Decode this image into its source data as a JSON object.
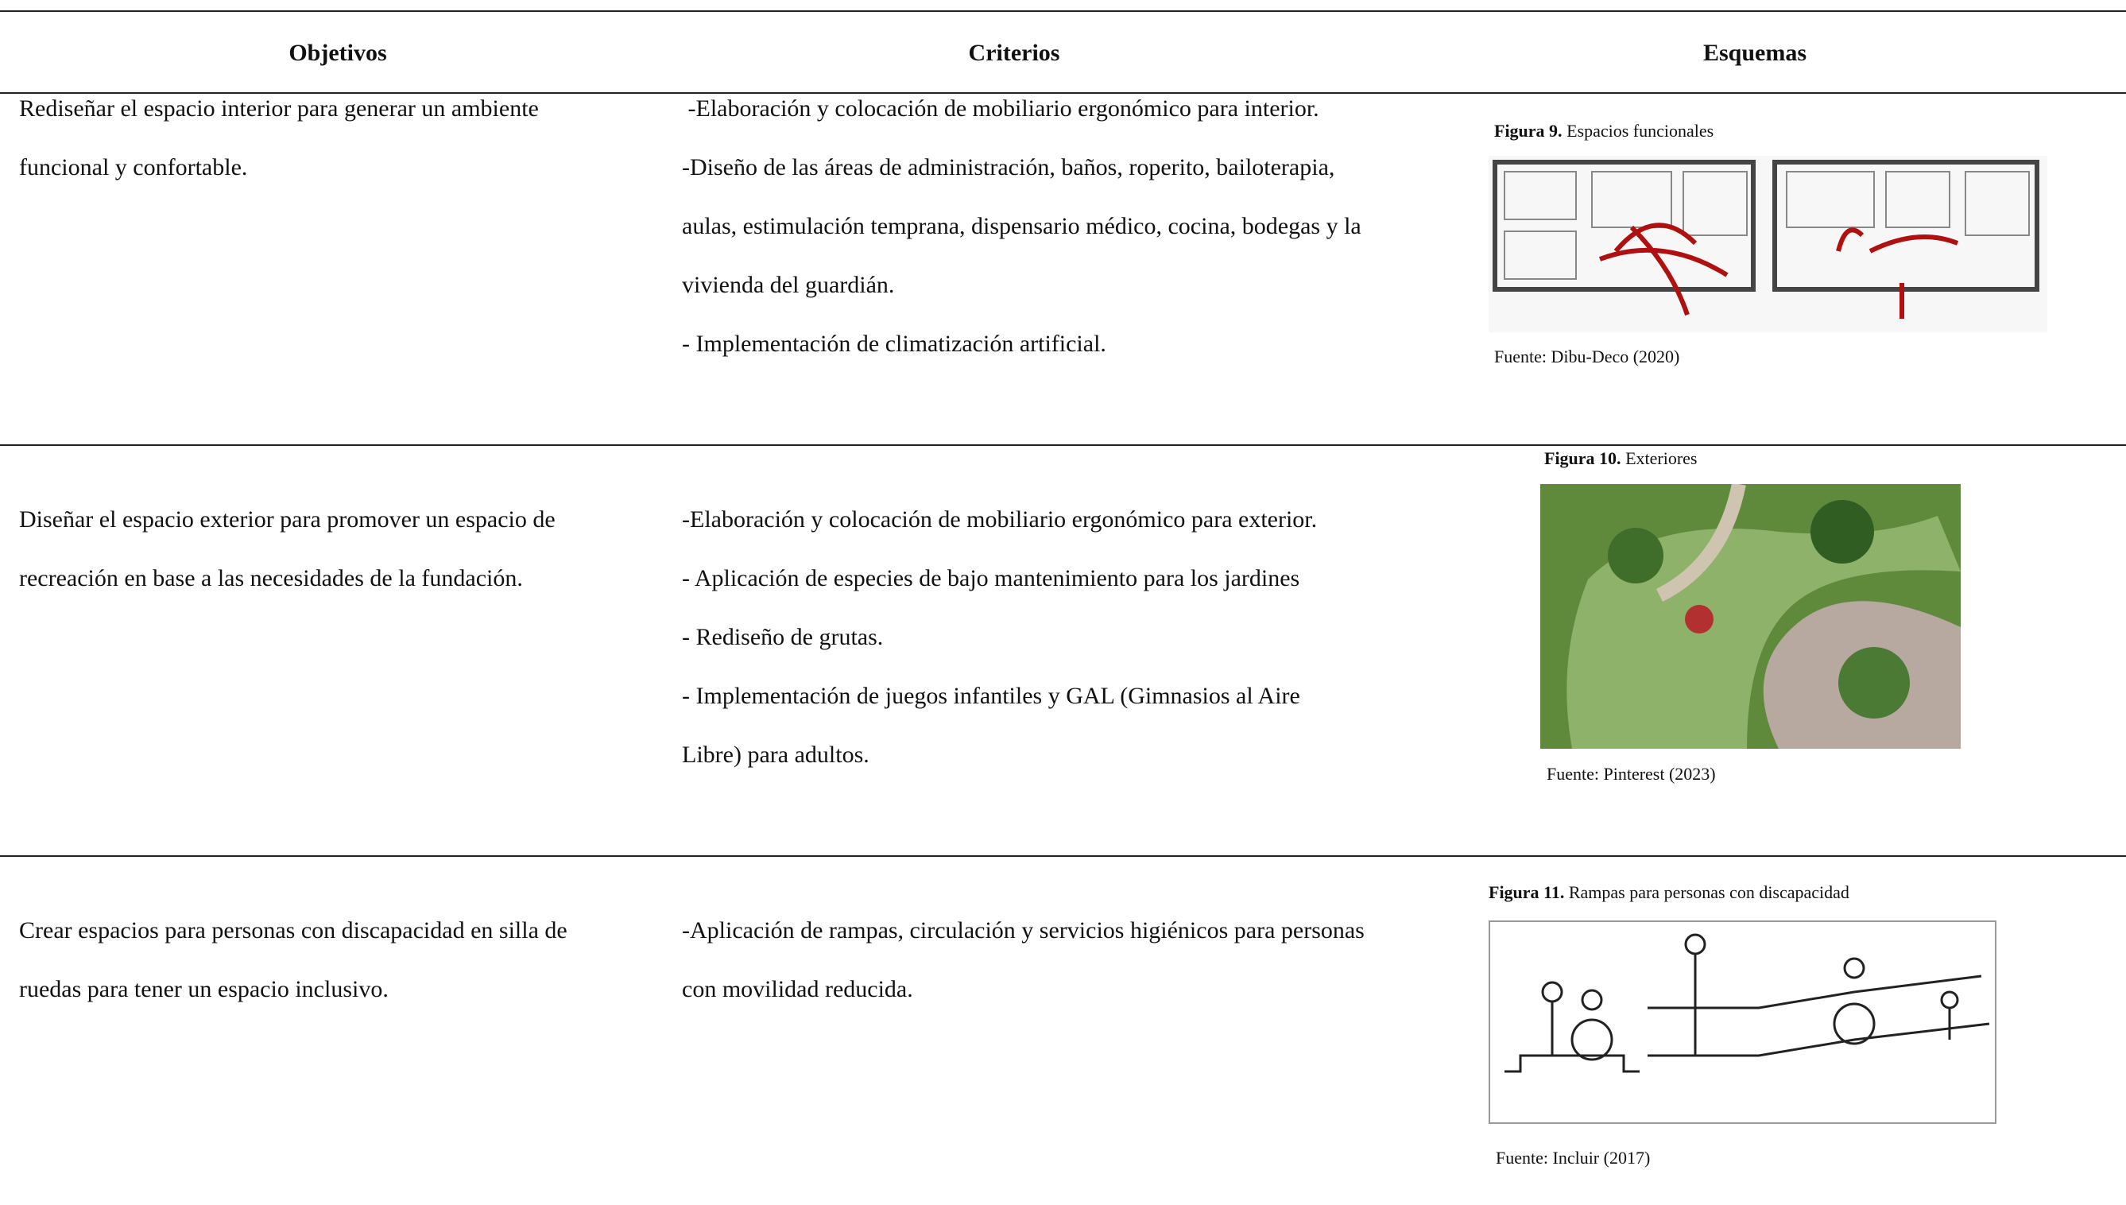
{
  "table": {
    "headers": [
      "Objetivos",
      "Criterios",
      "Esquemas"
    ],
    "rows": [
      {
        "objetivo": "Rediseñar el espacio interior para generar un ambiente funcional y confortable.",
        "criterios": [
          " -Elaboración y colocación de mobiliario ergonómico para interior.",
          "-Diseño de las áreas de administración, baños, roperito, bailoterapia, aulas, estimulación temprana, dispensario médico, cocina, bodegas y la vivienda del guardián.",
          "- Implementación de climatización artificial."
        ],
        "figura": {
          "label": "Figura 9.",
          "title": "Espacios funcionales",
          "source": "Fuente: Dibu-Deco (2020)"
        }
      },
      {
        "objetivo": "Diseñar el espacio exterior para promover un espacio de recreación en base a las necesidades de la fundación.",
        "criterios": [
          "-Elaboración y colocación de mobiliario ergonómico para exterior.",
          "- Aplicación de especies de bajo mantenimiento para los jardines",
          "- Rediseño de grutas.",
          "- Implementación de juegos infantiles y GAL (Gimnasios al Aire Libre) para adultos."
        ],
        "figura": {
          "label": "Figura 10.",
          "title": "Exteriores",
          "source": "Fuente: Pinterest (2023)"
        }
      },
      {
        "objetivo": "Crear espacios para personas con discapacidad en silla de ruedas para tener un espacio inclusivo.",
        "criterios": [
          "-Aplicación de rampas, circulación y servicios higiénicos para personas con movilidad reducida."
        ],
        "figura": {
          "label": "Figura 11.",
          "title": "Rampas para personas con discapacidad",
          "source": "Fuente: Incluir (2017)"
        }
      }
    ]
  }
}
